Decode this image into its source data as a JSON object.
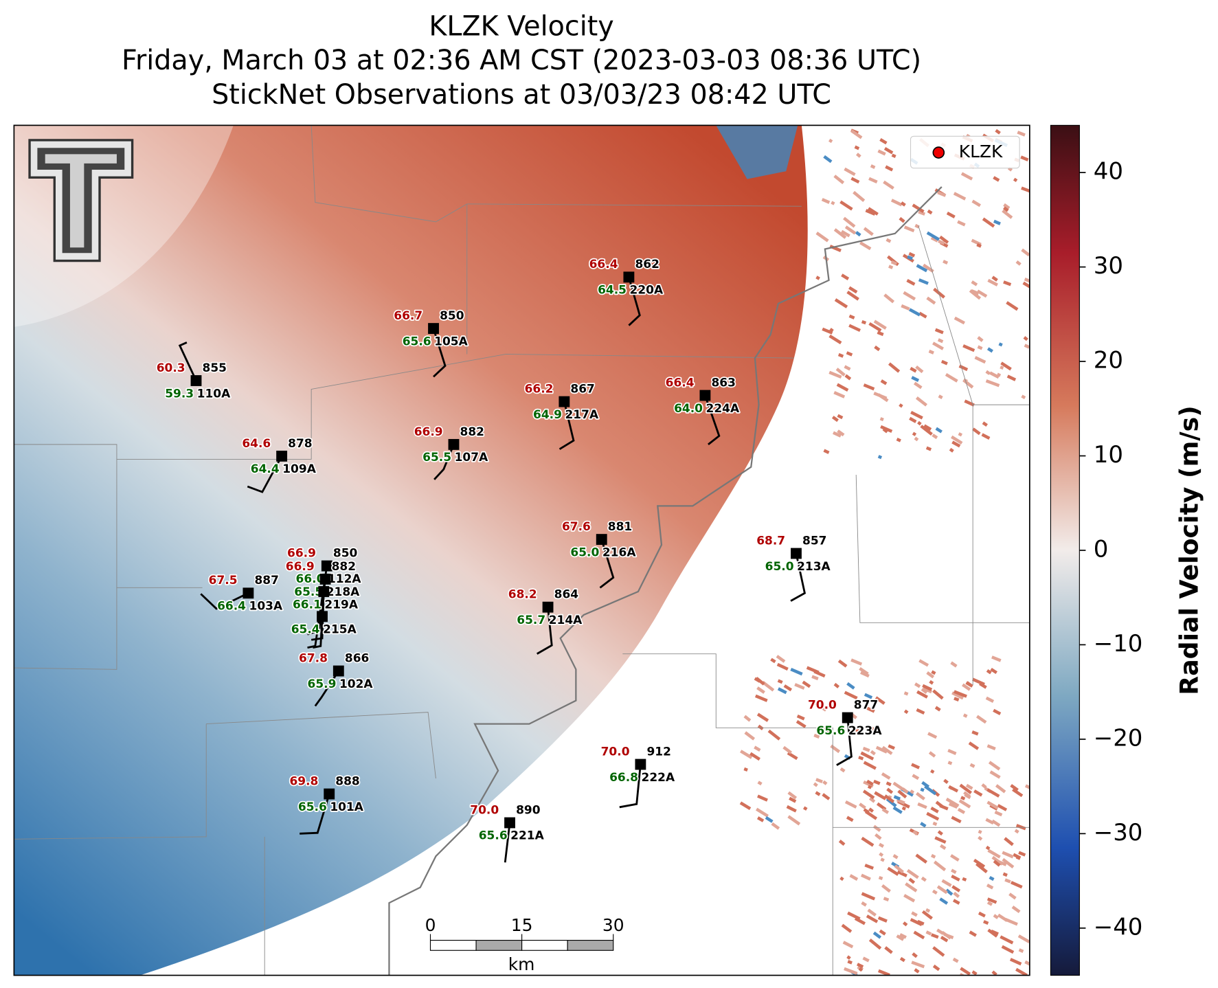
{
  "title_lines": [
    "KLZK Velocity",
    "Friday, March 03 at 02:36 AM CST (2023-03-03 08:36 UTC)",
    "StickNet Observations at 03/03/23 08:42 UTC"
  ],
  "legend": {
    "label": "KLZK"
  },
  "colorbar": {
    "label": "Radial Velocity (m/s)",
    "lim": [
      -45,
      45
    ],
    "ticks": [
      40,
      30,
      20,
      10,
      0,
      {
        "value": -10,
        "label": "−10"
      },
      {
        "value": -20,
        "label": "−20"
      },
      {
        "value": -30,
        "label": "−30"
      },
      {
        "value": -40,
        "label": "−40"
      }
    ]
  },
  "scale_bar": {
    "ticks": [
      0,
      15,
      30
    ],
    "unit": "km"
  },
  "stations": [
    {
      "temperature": "60.3",
      "pressure": 855,
      "dewpoint": "59.3",
      "id": "110A"
    },
    {
      "temperature": "66.7",
      "pressure": 850,
      "dewpoint": "65.6",
      "id": "105A"
    },
    {
      "temperature": "66.4",
      "pressure": 862,
      "dewpoint": "64.5",
      "id": "220A"
    },
    {
      "temperature": "66.2",
      "pressure": 867,
      "dewpoint": "64.9",
      "id": "217A"
    },
    {
      "temperature": "66.4",
      "pressure": 863,
      "dewpoint": "64.0",
      "id": "224A"
    },
    {
      "temperature": "64.6",
      "pressure": 878,
      "dewpoint": "64.4",
      "id": "109A"
    },
    {
      "temperature": "66.9",
      "pressure": 882,
      "dewpoint": "65.5",
      "id": "107A"
    },
    {
      "temperature": "67.6",
      "pressure": 881,
      "dewpoint": "65.0",
      "id": "216A"
    },
    {
      "temperature": "68.7",
      "pressure": 857,
      "dewpoint": "65.0",
      "id": "213A"
    },
    {
      "temperature": "67.5",
      "pressure": 887,
      "dewpoint": "66.4",
      "id": "103A"
    },
    {
      "temperature": "68.2",
      "pressure": 864,
      "dewpoint": "65.7",
      "id": "214A"
    },
    {
      "temperature": "67.8",
      "pressure": 866,
      "dewpoint": "65.9",
      "id": "102A"
    },
    {
      "temperature": "70.0",
      "pressure": 877,
      "dewpoint": "65.6",
      "id": "223A"
    },
    {
      "temperature": "70.0",
      "pressure": 912,
      "dewpoint": "66.8",
      "id": "222A"
    },
    {
      "temperature": "69.8",
      "pressure": 888,
      "dewpoint": "65.6",
      "id": "101A"
    },
    {
      "temperature": "70.0",
      "pressure": 890,
      "dewpoint": "65.6",
      "id": "221A"
    },
    {
      "temperature": "66.9",
      "pressure": 850,
      "dewpoint": "66.0",
      "id": "112A"
    },
    {
      "temperature": "66.9",
      "pressure": 882,
      "dewpoint": "65.5",
      "id": "218A"
    },
    {
      "dewpoint": "66.1",
      "id": "219A"
    },
    {
      "dewpoint": "65.4",
      "id": "215A"
    }
  ]
}
